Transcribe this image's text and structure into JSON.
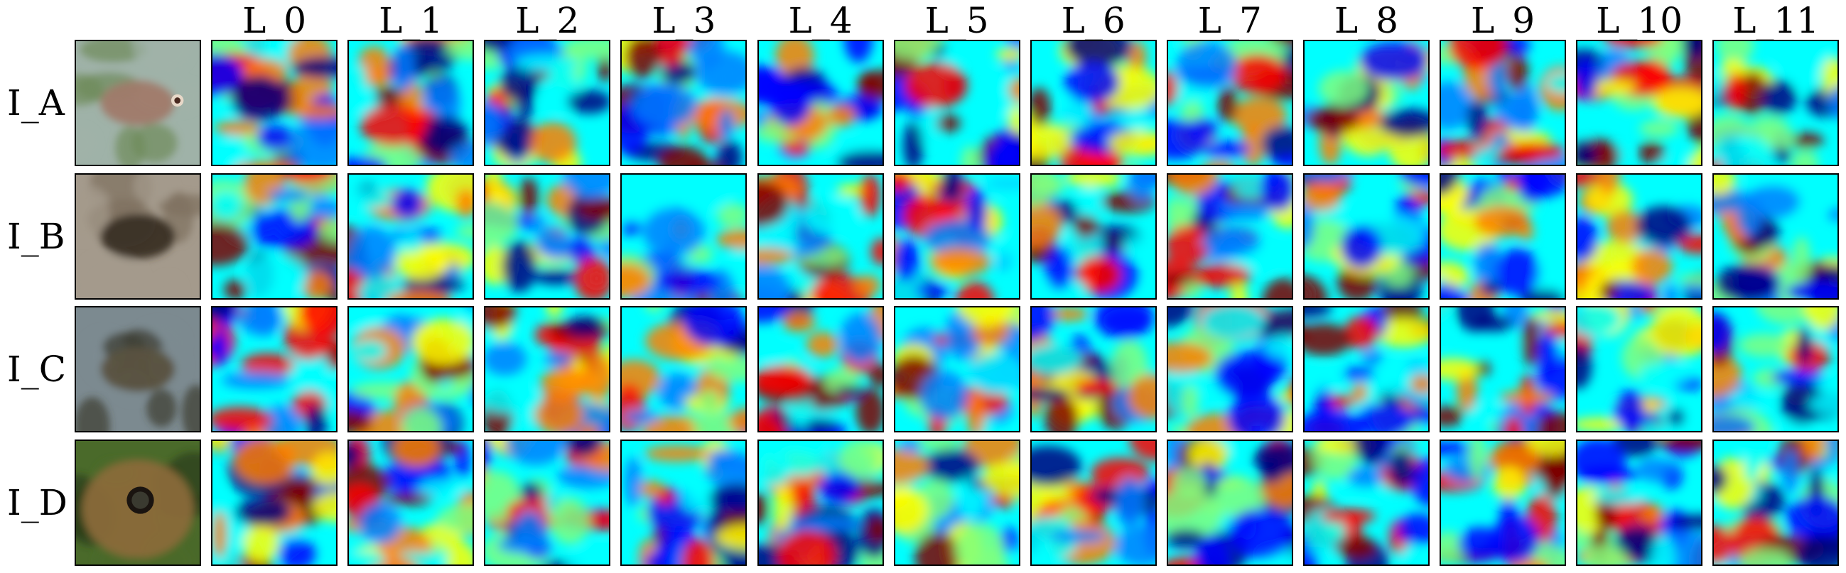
{
  "figure": {
    "column_labels": [
      "L_0",
      "L_1",
      "L_2",
      "L_3",
      "L_4",
      "L_5",
      "L_6",
      "L_7",
      "L_8",
      "L_9",
      "L_10",
      "L_11"
    ],
    "row_labels": [
      "I_A",
      "I_B",
      "I_C",
      "I_D"
    ],
    "rows": [
      {
        "label": "I_A",
        "photo_subject": "fish-photo",
        "photo_colors": {
          "background": "#9fb2a8",
          "subject": "#a07a6a",
          "foliage": "#6d8a5a"
        }
      },
      {
        "label": "I_B",
        "photo_subject": "salamander-photo",
        "photo_colors": {
          "background": "#a49a8c",
          "subject": "#3a2e24",
          "foliage": "#7d6f5e"
        }
      },
      {
        "label": "I_C",
        "photo_subject": "toad-photo",
        "photo_colors": {
          "background": "#7c8a90",
          "subject": "#5a5240",
          "foliage": "#3a3a30"
        }
      },
      {
        "label": "I_D",
        "photo_subject": "toad-closeup-photo",
        "photo_colors": {
          "background": "#4a6a2a",
          "subject": "#8a6a3a",
          "foliage": "#2a3a1a"
        }
      }
    ],
    "colormap": "jet",
    "colormap_stops": [
      "#00007f",
      "#0000ff",
      "#007fff",
      "#00ffff",
      "#7fff7f",
      "#ffff00",
      "#ff7f00",
      "#ff0000",
      "#7f0000"
    ],
    "heatmap_style": "smooth random activation maps (approximation)"
  }
}
